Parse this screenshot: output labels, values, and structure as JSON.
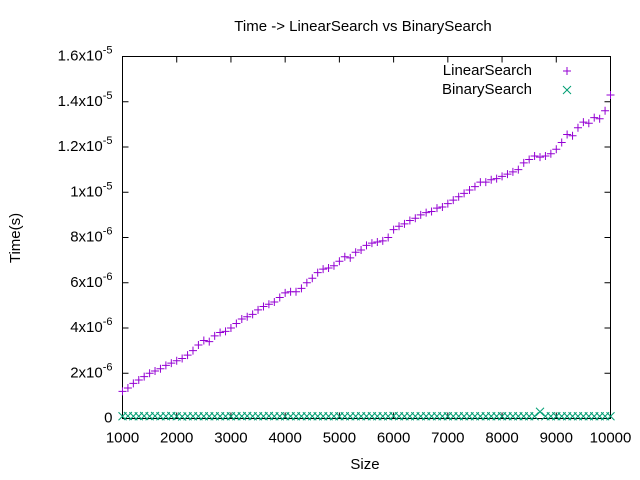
{
  "chart_data": {
    "type": "scatter",
    "title": "Time -> LinearSearch vs BinarySearch",
    "x_label": "Size",
    "y_label": "Time(s)",
    "legend": "top-right",
    "grid": false,
    "x": [
      1000,
      1100,
      1200,
      1300,
      1400,
      1500,
      1600,
      1700,
      1800,
      1900,
      2000,
      2100,
      2200,
      2300,
      2400,
      2500,
      2600,
      2700,
      2800,
      2900,
      3000,
      3100,
      3200,
      3300,
      3400,
      3500,
      3600,
      3700,
      3800,
      3900,
      4000,
      4100,
      4200,
      4300,
      4400,
      4500,
      4600,
      4700,
      4800,
      4900,
      5000,
      5100,
      5200,
      5300,
      5400,
      5500,
      5600,
      5700,
      5800,
      5900,
      6000,
      6100,
      6200,
      6300,
      6400,
      6500,
      6600,
      6700,
      6800,
      6900,
      7000,
      7100,
      7200,
      7300,
      7400,
      7500,
      7600,
      7700,
      7800,
      7900,
      8000,
      8100,
      8200,
      8300,
      8400,
      8500,
      8600,
      8700,
      8800,
      8900,
      9000,
      9100,
      9200,
      9300,
      9400,
      9500,
      9600,
      9700,
      9800,
      9900,
      10000
    ],
    "series": [
      {
        "name": "LinearSearch",
        "color": "#9400d3",
        "marker": "plus",
        "values": [
          1.2e-06,
          1.35e-06,
          1.55e-06,
          1.7e-06,
          1.85e-06,
          2e-06,
          2.1e-06,
          2.2e-06,
          2.35e-06,
          2.45e-06,
          2.55e-06,
          2.65e-06,
          2.8e-06,
          3e-06,
          3.25e-06,
          3.45e-06,
          3.4e-06,
          3.65e-06,
          3.8e-06,
          3.85e-06,
          4e-06,
          4.2e-06,
          4.4e-06,
          4.5e-06,
          4.6e-06,
          4.8e-06,
          4.95e-06,
          5.05e-06,
          5.15e-06,
          5.35e-06,
          5.55e-06,
          5.6e-06,
          5.6e-06,
          5.75e-06,
          6e-06,
          6.2e-06,
          6.45e-06,
          6.6e-06,
          6.65e-06,
          6.75e-06,
          6.95e-06,
          7.15e-06,
          7.1e-06,
          7.35e-06,
          7.45e-06,
          7.65e-06,
          7.75e-06,
          7.8e-06,
          7.85e-06,
          8e-06,
          8.35e-06,
          8.5e-06,
          8.6e-06,
          8.75e-06,
          8.85e-06,
          9e-06,
          9.1e-06,
          9.15e-06,
          9.3e-06,
          9.35e-06,
          9.5e-06,
          9.65e-06,
          9.8e-06,
          9.95e-06,
          1.01e-05,
          1.025e-05,
          1.045e-05,
          1.045e-05,
          1.055e-05,
          1.06e-05,
          1.07e-05,
          1.08e-05,
          1.09e-05,
          1.1e-05,
          1.13e-05,
          1.145e-05,
          1.16e-05,
          1.155e-05,
          1.16e-05,
          1.17e-05,
          1.19e-05,
          1.22e-05,
          1.255e-05,
          1.25e-05,
          1.285e-05,
          1.31e-05,
          1.305e-05,
          1.33e-05,
          1.325e-05,
          1.36e-05,
          1.43e-05
        ]
      },
      {
        "name": "BinarySearch",
        "color": "#009e73",
        "marker": "cross",
        "values": [
          1e-07,
          1.1e-07,
          1e-07,
          1e-07,
          1.1e-07,
          1e-07,
          1.1e-07,
          1e-07,
          1e-07,
          1.1e-07,
          1e-07,
          9e-08,
          1e-07,
          1e-07,
          1e-07,
          1e-07,
          1e-07,
          1e-07,
          1e-07,
          1e-07,
          1e-07,
          1e-07,
          1e-07,
          1.1e-07,
          1e-07,
          1e-07,
          1e-07,
          1.1e-07,
          1e-07,
          1e-07,
          1e-07,
          1e-07,
          1e-07,
          1e-07,
          1e-07,
          1e-07,
          1e-07,
          1e-07,
          1e-07,
          1e-07,
          1e-07,
          1e-07,
          1e-07,
          1e-07,
          1e-07,
          1e-07,
          1e-07,
          1e-07,
          1e-07,
          1e-07,
          1.1e-07,
          1e-07,
          1e-07,
          1e-07,
          1e-07,
          1e-07,
          1e-07,
          1e-07,
          1e-07,
          1e-07,
          1e-07,
          1e-07,
          1e-07,
          1e-07,
          1e-07,
          1e-07,
          1e-07,
          1e-07,
          1e-07,
          1e-07,
          1e-07,
          1e-07,
          1e-07,
          1e-07,
          1e-07,
          1e-07,
          1e-07,
          3e-07,
          1e-07,
          1e-07,
          1e-07,
          1e-07,
          1e-07,
          1e-07,
          1e-07,
          1e-07,
          1e-07,
          1e-07,
          1e-07,
          1e-07,
          1e-07
        ]
      }
    ],
    "xlim": [
      1000,
      10000
    ],
    "xticks": [
      1000,
      2000,
      3000,
      4000,
      5000,
      6000,
      7000,
      8000,
      9000,
      10000
    ],
    "ylim": [
      0,
      1.6e-05
    ],
    "yticks": [
      0,
      {
        "value": 2e-06,
        "label": "2x10^-6"
      },
      {
        "value": 4e-06,
        "label": "4x10^-6"
      },
      {
        "value": 6e-06,
        "label": "6x10^-6"
      },
      {
        "value": 8e-06,
        "label": "8x10^-6"
      },
      {
        "value": 1e-05,
        "label": "1x10^-5"
      },
      {
        "value": 1.2e-05,
        "label": "1.2x10^-5"
      },
      {
        "value": 1.4e-05,
        "label": "1.4x10^-5"
      },
      {
        "value": 1.6e-05,
        "label": "1.6x10^-5"
      }
    ]
  }
}
